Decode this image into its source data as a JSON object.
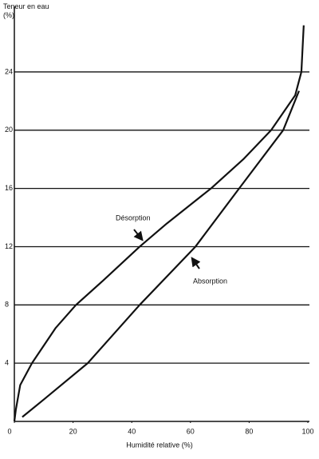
{
  "chart_data": {
    "type": "line",
    "ylabel": "Teneur en eau (%)",
    "xlabel": "Humidité relative (%)",
    "xlim": [
      0,
      100
    ],
    "xticks": [
      0,
      20,
      40,
      60,
      80,
      100
    ],
    "ylim": [
      0,
      28.5
    ],
    "yticks": [
      4,
      8,
      12,
      16,
      20,
      24
    ],
    "grid": true,
    "series": [
      {
        "name": "Désorption",
        "color": "#111111",
        "x": [
          0,
          0.5,
          2,
          6,
          14,
          21,
          30.4,
          42.7,
          52,
          67,
          78,
          87.5,
          95.7,
          97.8,
          98.6
        ],
        "values": [
          0,
          0.8,
          2.5,
          4,
          6.4,
          8,
          9.7,
          12,
          13.6,
          16,
          18,
          20,
          22.4,
          24,
          27.2
        ]
      },
      {
        "name": "Absorption",
        "color": "#111111",
        "x": [
          2.7,
          10,
          25,
          42.7,
          61.7,
          76.6,
          91.6,
          97
        ],
        "values": [
          0.3,
          1.5,
          4,
          8,
          12,
          16,
          20,
          22.7
        ]
      }
    ]
  }
}
